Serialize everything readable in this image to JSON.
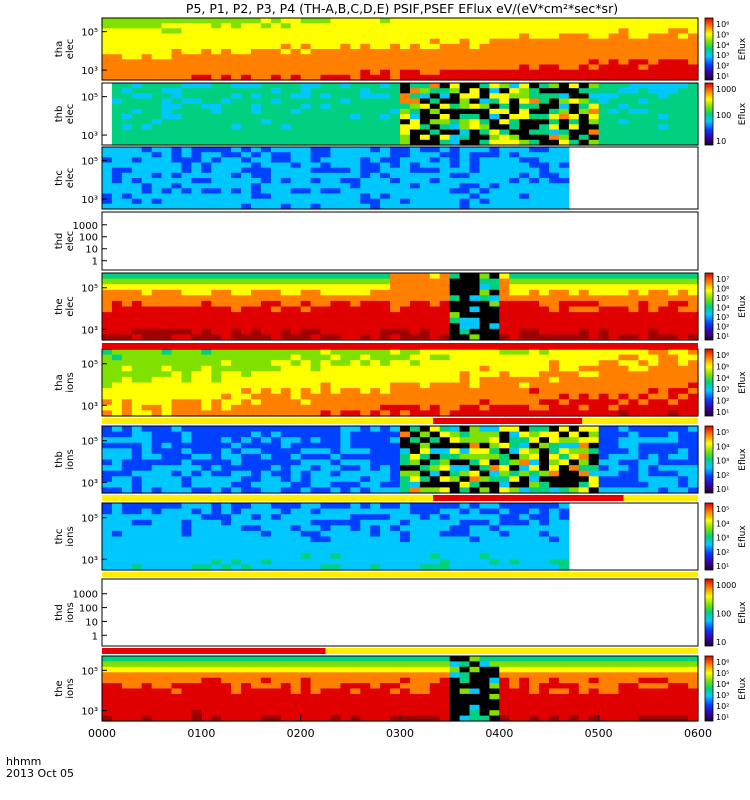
{
  "title": "P5, P1, P2, P3, P4  (TH-A,B,C,D,E) PSIF,PSEF EFlux eV/(eV*cm²*sec*sr)",
  "time_axis": {
    "label_top": "hhmm",
    "label_bottom": "2013 Oct 05",
    "ticks": [
      "0000",
      "0100",
      "0200",
      "0300",
      "0400",
      "0500",
      "0600"
    ]
  },
  "colorbar_label": "Eflux",
  "chart_data": [
    {
      "type": "heatmap",
      "name": "tha elec",
      "label_lines": [
        "tha",
        "elec"
      ],
      "yscale": "log",
      "yticks": [
        "10⁵",
        "10³"
      ],
      "colorbar_ticks": [
        "10⁶",
        "10⁵",
        "10⁴",
        "10³",
        "10²",
        "10¹"
      ],
      "data_coverage_hhmm": [
        "0000",
        "0600"
      ],
      "dominant_level": "high at low energy, mid at high energy"
    },
    {
      "type": "heatmap",
      "name": "thb elec",
      "label_lines": [
        "thb",
        "elec"
      ],
      "yscale": "log",
      "yticks": [
        "10⁵",
        "10³"
      ],
      "colorbar_ticks": [
        "1000",
        "100",
        "10"
      ],
      "data_coverage_hhmm": [
        "0010",
        "0600"
      ],
      "noisy_interval_hhmm": [
        "0300",
        "0500"
      ]
    },
    {
      "type": "heatmap",
      "name": "thc elec",
      "label_lines": [
        "thc",
        "elec"
      ],
      "yscale": "log",
      "yticks": [
        "10⁵",
        "10³"
      ],
      "colorbar_ticks": [],
      "data_coverage_hhmm": [
        "0000",
        "0440"
      ]
    },
    {
      "type": "heatmap",
      "name": "thd elec",
      "label_lines": [
        "thd",
        "elec"
      ],
      "yscale": "log",
      "yticks": [
        "1000",
        "100",
        "10",
        "1"
      ],
      "colorbar_ticks": [],
      "data_coverage_hhmm": []
    },
    {
      "type": "heatmap",
      "name": "the elec",
      "label_lines": [
        "the",
        "elec"
      ],
      "yscale": "log",
      "yticks": [
        "10⁵",
        "10³"
      ],
      "colorbar_ticks": [
        "10⁷",
        "10⁶",
        "10⁵",
        "10⁴",
        "10³",
        "10²",
        "10¹"
      ],
      "data_coverage_hhmm": [
        "0000",
        "0600"
      ],
      "gap_hhmm": [
        "0325",
        "0355"
      ]
    },
    {
      "type": "heatmap",
      "name": "tha ions",
      "label_lines": [
        "tha",
        "ions"
      ],
      "yscale": "log",
      "yticks": [
        "10⁵",
        "10³"
      ],
      "colorbar_ticks": [
        "10⁶",
        "10⁵",
        "10⁴",
        "10³",
        "10²",
        "10¹"
      ],
      "data_coverage_hhmm": [
        "0000",
        "0600"
      ]
    },
    {
      "type": "heatmap",
      "name": "thb ions",
      "label_lines": [
        "thb",
        "ions"
      ],
      "yscale": "log",
      "yticks": [
        "10⁵",
        "10³"
      ],
      "colorbar_ticks": [
        "10⁵",
        "10⁴",
        "10³",
        "10²",
        "10¹"
      ],
      "data_coverage_hhmm": [
        "0000",
        "0600"
      ],
      "noisy_interval_hhmm": [
        "0300",
        "0500"
      ]
    },
    {
      "type": "heatmap",
      "name": "thc ions",
      "label_lines": [
        "thc",
        "ions"
      ],
      "yscale": "log",
      "yticks": [
        "10⁵",
        "10³"
      ],
      "colorbar_ticks": [
        "10⁵",
        "10⁴",
        "10³",
        "10²",
        "10¹"
      ],
      "data_coverage_hhmm": [
        "0000",
        "0440"
      ]
    },
    {
      "type": "heatmap",
      "name": "thd ions",
      "label_lines": [
        "thd",
        "ions"
      ],
      "yscale": "log",
      "yticks": [
        "1000",
        "100",
        "10",
        "1"
      ],
      "colorbar_ticks": [
        "1000",
        "100",
        "10"
      ],
      "data_coverage_hhmm": []
    },
    {
      "type": "heatmap",
      "name": "the ions",
      "label_lines": [
        "the",
        "ions"
      ],
      "yscale": "log",
      "yticks": [
        "10⁵",
        "10³"
      ],
      "colorbar_ticks": [
        "10⁶",
        "10⁵",
        "10⁴",
        "10³",
        "10²",
        "10¹"
      ],
      "data_coverage_hhmm": [
        "0000",
        "0600"
      ],
      "gap_hhmm": [
        "0325",
        "0355"
      ]
    }
  ],
  "colors": {
    "bar_red": "#e60000",
    "bar_yellow": "#ffee00",
    "frame": "#000000"
  }
}
